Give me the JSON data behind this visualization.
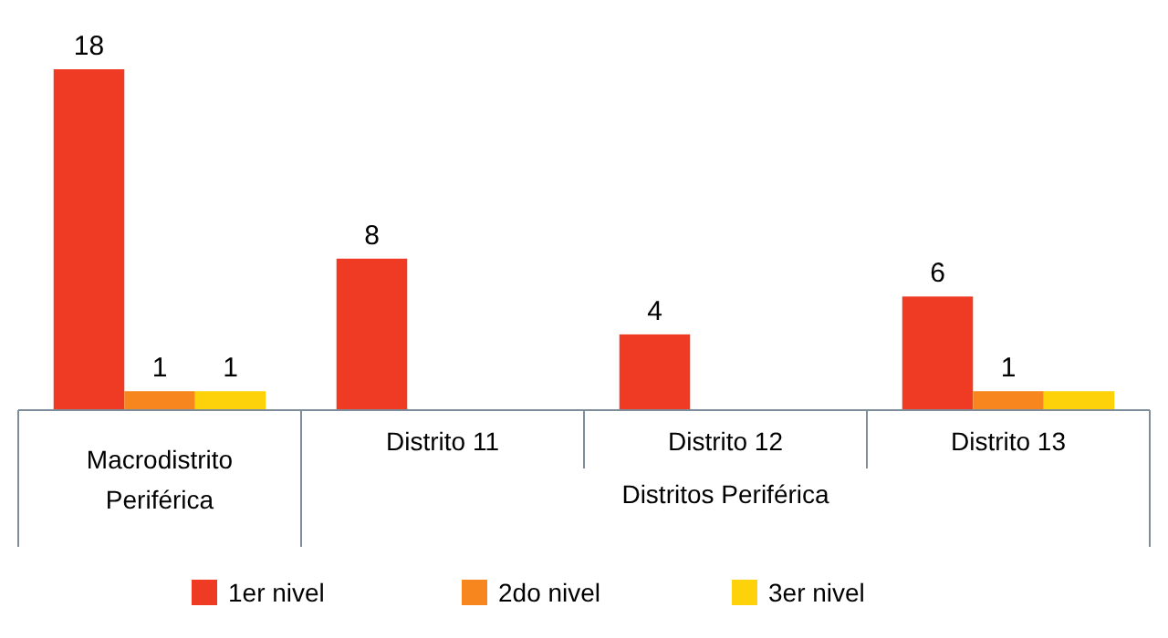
{
  "chart_data": {
    "type": "bar",
    "categories": [
      "Macrodistrito Periférica",
      "Distrito 11",
      "Distrito 12",
      "Distrito 13"
    ],
    "series": [
      {
        "name": "1er nivel",
        "color": "#ef3b24",
        "values": [
          18,
          8,
          4,
          6
        ],
        "value_labels": [
          "18",
          "8",
          "4",
          "6"
        ]
      },
      {
        "name": "2do nivel",
        "color": "#f7861e",
        "values": [
          1,
          null,
          null,
          1
        ],
        "value_labels": [
          "1",
          null,
          null,
          "1"
        ]
      },
      {
        "name": "3er nivel",
        "color": "#fdd20a",
        "values": [
          1,
          null,
          null,
          1
        ],
        "value_labels": [
          "1",
          null,
          null,
          null
        ]
      }
    ],
    "annotations": [
      "Distritos Periférica"
    ],
    "legend": "bottom"
  }
}
